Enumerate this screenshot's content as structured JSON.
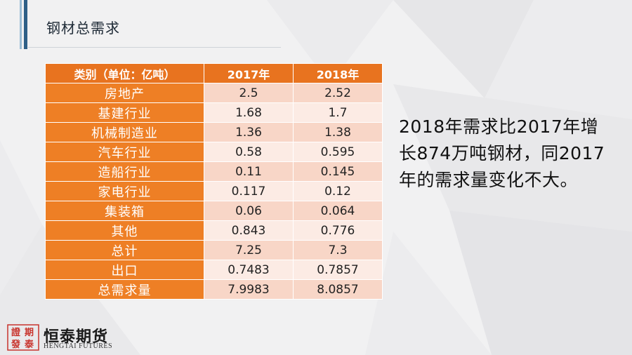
{
  "slide": {
    "title": "钢材总需求",
    "note": "2018年需求比2017年增长874万吨钢材，同2017年的需求量变化不大。"
  },
  "table": {
    "headers": [
      "类别（单位：亿吨）",
      "2017年",
      "2018年"
    ],
    "rows": [
      {
        "category": "房地产",
        "y2017": "2.5",
        "y2018": "2.52"
      },
      {
        "category": "基建行业",
        "y2017": "1.68",
        "y2018": "1.7"
      },
      {
        "category": "机械制造业",
        "y2017": "1.36",
        "y2018": "1.38"
      },
      {
        "category": "汽车行业",
        "y2017": "0.58",
        "y2018": "0.595"
      },
      {
        "category": "造船行业",
        "y2017": "0.11",
        "y2018": "0.145"
      },
      {
        "category": "家电行业",
        "y2017": "0.117",
        "y2018": "0.12"
      },
      {
        "category": "集装箱",
        "y2017": "0.06",
        "y2018": "0.064"
      },
      {
        "category": "其他",
        "y2017": "0.843",
        "y2018": "0.776"
      },
      {
        "category": "总计",
        "y2017": "7.25",
        "y2018": "7.3"
      },
      {
        "category": "出口",
        "y2017": "0.7483",
        "y2018": "0.7857"
      },
      {
        "category": "总需求量",
        "y2017": "7.9983",
        "y2018": "8.0857"
      }
    ]
  },
  "logo": {
    "seal_text": "證期\n發泰",
    "name": "恒泰期货",
    "sub": "HENGTAI FUTURES"
  },
  "colors": {
    "header_orange": "#e8731f",
    "category_orange": "#ee7f25",
    "row_pink_dark": "#f8d6c7",
    "row_pink_light": "#fcebe4",
    "accent_blue": "#2e5f87"
  }
}
